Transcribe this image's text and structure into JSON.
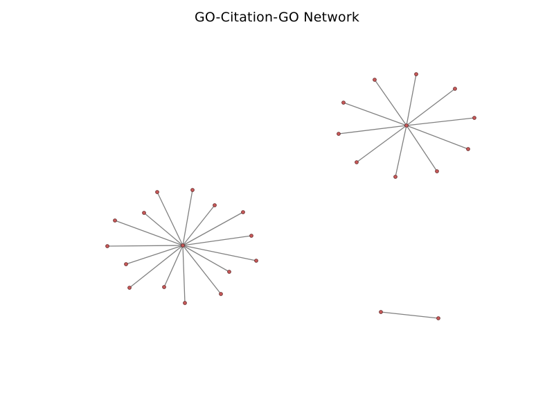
{
  "title": "GO-Citation-GO Network",
  "style": {
    "edge_color": "#808080",
    "node_fill": "#c85a5a",
    "node_stroke": "#5a1e1e",
    "background": "#ffffff"
  },
  "components": [
    {
      "hub_degree": 14,
      "leaf_count": 14
    },
    {
      "hub_degree": 10,
      "leaf_count": 10
    },
    {
      "hub_degree": 1,
      "leaf_count": 1,
      "pair": true
    }
  ]
}
